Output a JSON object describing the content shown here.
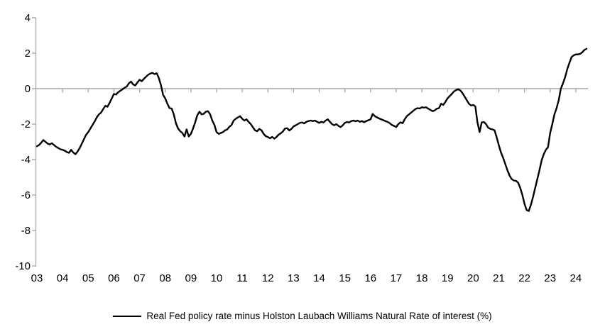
{
  "chart_data": {
    "type": "line",
    "title": "",
    "xlabel": "",
    "ylabel": "",
    "ylim": [
      -10,
      4
    ],
    "grid": false,
    "legend_position": "bottom",
    "zero_axis": true,
    "colors": {
      "line": "#000000",
      "axis": "#a6a6a6",
      "text": "#000000",
      "background": "#ffffff"
    },
    "y_ticks": [
      4,
      2,
      0,
      -2,
      -4,
      -6,
      -8,
      -10
    ],
    "y_tick_labels": [
      "4",
      "2",
      "0",
      "-2",
      "-4",
      "-6",
      "-8",
      "-10"
    ],
    "x_tick_labels": [
      "03",
      "04",
      "05",
      "06",
      "07",
      "08",
      "09",
      "10",
      "11",
      "12",
      "13",
      "14",
      "15",
      "16",
      "17",
      "18",
      "19",
      "20",
      "21",
      "22",
      "23",
      "24"
    ],
    "x_start_year": 2003,
    "x_end": "mid-2024",
    "frequency": "monthly",
    "series": [
      {
        "name": "Real Fed policy rate minus Holston Laubach Williams Natural Rate of interest (%)",
        "color": "#000000",
        "values": [
          -3.25,
          -3.18,
          -3.05,
          -2.9,
          -3.0,
          -3.1,
          -3.15,
          -3.08,
          -3.18,
          -3.28,
          -3.35,
          -3.42,
          -3.45,
          -3.5,
          -3.58,
          -3.62,
          -3.45,
          -3.6,
          -3.7,
          -3.55,
          -3.35,
          -3.1,
          -2.85,
          -2.6,
          -2.45,
          -2.25,
          -2.05,
          -1.85,
          -1.62,
          -1.45,
          -1.35,
          -1.15,
          -0.97,
          -1.02,
          -0.8,
          -0.55,
          -0.3,
          -0.33,
          -0.2,
          -0.12,
          -0.04,
          0.05,
          0.12,
          0.3,
          0.4,
          0.24,
          0.18,
          0.35,
          0.5,
          0.42,
          0.55,
          0.67,
          0.78,
          0.85,
          0.89,
          0.82,
          0.87,
          0.6,
          0.2,
          -0.35,
          -0.55,
          -0.85,
          -1.1,
          -1.12,
          -1.45,
          -1.95,
          -2.25,
          -2.4,
          -2.5,
          -2.7,
          -2.3,
          -2.7,
          -2.55,
          -2.25,
          -1.9,
          -1.5,
          -1.3,
          -1.45,
          -1.42,
          -1.3,
          -1.27,
          -1.45,
          -1.8,
          -2.05,
          -2.45,
          -2.55,
          -2.5,
          -2.45,
          -2.35,
          -2.3,
          -2.15,
          -2.05,
          -1.8,
          -1.7,
          -1.62,
          -1.55,
          -1.7,
          -1.8,
          -1.73,
          -1.88,
          -2.0,
          -2.18,
          -2.35,
          -2.4,
          -2.27,
          -2.35,
          -2.55,
          -2.68,
          -2.73,
          -2.8,
          -2.72,
          -2.82,
          -2.73,
          -2.6,
          -2.52,
          -2.42,
          -2.25,
          -2.23,
          -2.36,
          -2.27,
          -2.13,
          -2.07,
          -2.0,
          -1.93,
          -1.91,
          -1.96,
          -1.87,
          -1.83,
          -1.8,
          -1.83,
          -1.8,
          -1.87,
          -1.93,
          -1.87,
          -1.91,
          -1.8,
          -1.73,
          -1.87,
          -2.0,
          -2.07,
          -2.0,
          -2.1,
          -2.17,
          -2.07,
          -1.93,
          -1.88,
          -1.91,
          -1.83,
          -1.8,
          -1.84,
          -1.8,
          -1.87,
          -1.83,
          -1.89,
          -1.83,
          -1.78,
          -1.73,
          -1.43,
          -1.55,
          -1.62,
          -1.68,
          -1.73,
          -1.78,
          -1.83,
          -1.88,
          -1.95,
          -2.05,
          -2.1,
          -2.17,
          -2.0,
          -1.9,
          -1.95,
          -1.73,
          -1.55,
          -1.45,
          -1.35,
          -1.25,
          -1.15,
          -1.1,
          -1.12,
          -1.05,
          -1.07,
          -1.05,
          -1.13,
          -1.2,
          -1.27,
          -1.23,
          -1.13,
          -1.1,
          -0.85,
          -0.92,
          -0.75,
          -0.55,
          -0.42,
          -0.3,
          -0.16,
          -0.08,
          -0.03,
          -0.1,
          -0.25,
          -0.45,
          -0.65,
          -0.85,
          -0.95,
          -0.92,
          -1.0,
          -1.9,
          -2.45,
          -1.9,
          -1.88,
          -2.0,
          -2.2,
          -2.27,
          -2.3,
          -2.35,
          -2.75,
          -3.2,
          -3.6,
          -3.9,
          -4.25,
          -4.6,
          -4.9,
          -5.1,
          -5.18,
          -5.2,
          -5.3,
          -5.6,
          -6.0,
          -6.5,
          -6.85,
          -6.9,
          -6.55,
          -6.1,
          -5.6,
          -5.1,
          -4.6,
          -4.05,
          -3.7,
          -3.45,
          -3.3,
          -2.5,
          -2.0,
          -1.45,
          -1.1,
          -0.65,
          0.0,
          0.3,
          0.65,
          1.1,
          1.45,
          1.78,
          1.88,
          1.93,
          1.93,
          1.96,
          2.05,
          2.18,
          2.25
        ]
      }
    ]
  }
}
